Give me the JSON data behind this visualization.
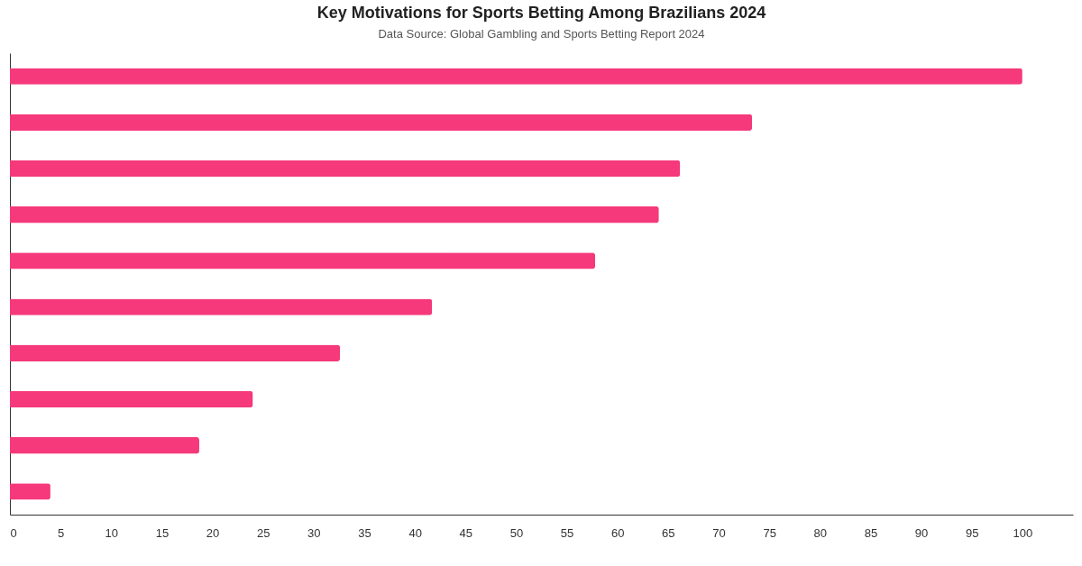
{
  "chart_data": {
    "type": "bar",
    "orientation": "horizontal",
    "title": "Key Motivations for Sports Betting Among Brazilians 2024",
    "subtitle": "Data Source: Global Gambling and Sports Betting Report 2024",
    "categories": [
      null,
      null,
      null,
      null,
      null,
      null,
      null,
      null,
      null,
      null
    ],
    "values": [
      100,
      73.3,
      66.2,
      64.1,
      57.8,
      41.7,
      32.6,
      24.0,
      18.7,
      4.0
    ],
    "color": "#f5397a",
    "xlim": [
      0,
      105
    ],
    "xticks": [
      0,
      5,
      10,
      15,
      20,
      25,
      30,
      35,
      40,
      45,
      50,
      55,
      60,
      65,
      70,
      75,
      80,
      85,
      90,
      95,
      100
    ],
    "grid": false,
    "tick_labels": "x"
  }
}
